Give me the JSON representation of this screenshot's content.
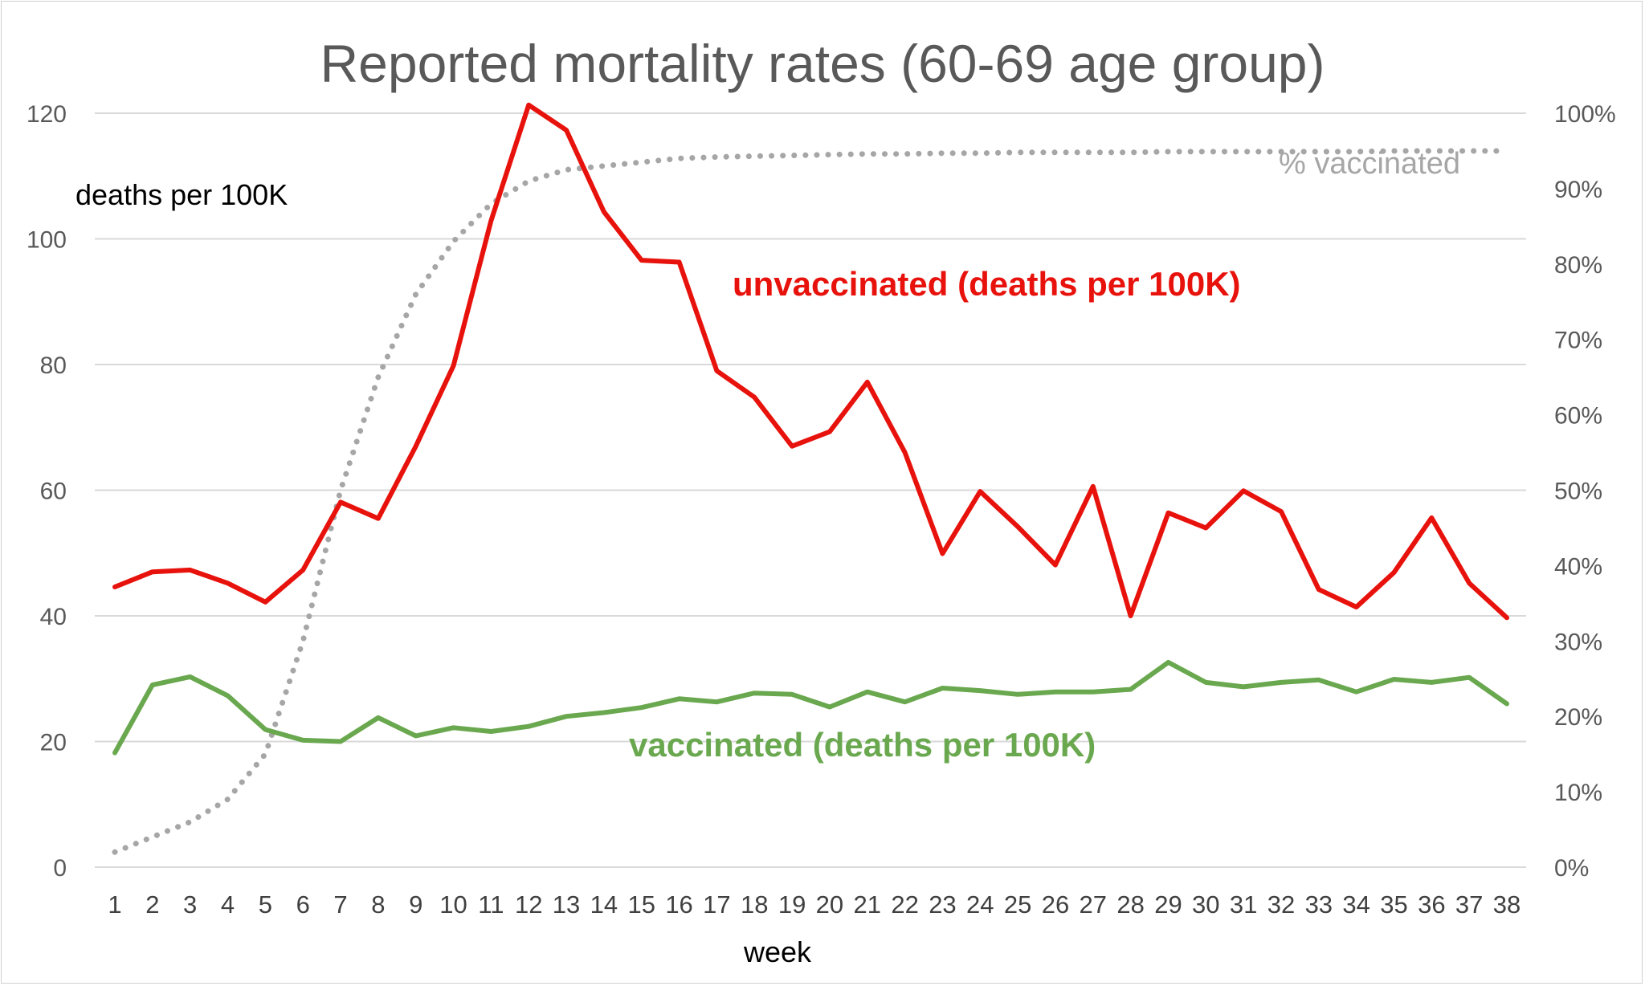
{
  "chart_data": {
    "type": "line",
    "title": "Reported mortality rates (60-69 age group)",
    "xlabel": "week",
    "ylabel": "deaths per 100K",
    "ylim": [
      0,
      120
    ],
    "y_ticks": [
      0,
      20,
      40,
      60,
      80,
      100,
      120
    ],
    "y2lim": [
      0,
      1
    ],
    "y2_ticks": [
      "0%",
      "10%",
      "20%",
      "30%",
      "40%",
      "50%",
      "60%",
      "70%",
      "80%",
      "90%",
      "100%"
    ],
    "grid": true,
    "categories": [
      "1",
      "2",
      "3",
      "4",
      "5",
      "6",
      "7",
      "8",
      "9",
      "10",
      "11",
      "12",
      "13",
      "14",
      "15",
      "16",
      "17",
      "18",
      "19",
      "20",
      "21",
      "22",
      "23",
      "24",
      "25",
      "26",
      "27",
      "28",
      "29",
      "30",
      "31",
      "32",
      "33",
      "34",
      "35",
      "36",
      "37",
      "38"
    ],
    "series": [
      {
        "name": "unvaccinated (deaths per 100K)",
        "axis": "left",
        "color": "#e8120c",
        "values": [
          44.6,
          47.0,
          47.3,
          45.2,
          42.2,
          47.3,
          58.1,
          55.5,
          67.0,
          79.8,
          102.9,
          121.3,
          117.3,
          104.3,
          96.6,
          96.3,
          79.0,
          74.8,
          67.0,
          69.3,
          77.2,
          66.0,
          49.9,
          59.8,
          54.2,
          48.1,
          60.6,
          40.0,
          56.4,
          54.0,
          59.9,
          56.6,
          44.2,
          41.4,
          46.9,
          55.6,
          45.2,
          39.7
        ]
      },
      {
        "name": "vaccinated (deaths per 100K)",
        "axis": "left",
        "color": "#6aa84f",
        "values": [
          18.2,
          29.0,
          30.3,
          27.3,
          21.9,
          20.2,
          20.0,
          23.8,
          20.9,
          22.2,
          21.6,
          22.4,
          24.0,
          24.6,
          25.4,
          26.8,
          26.3,
          27.7,
          27.5,
          25.5,
          27.9,
          26.3,
          28.5,
          28.1,
          27.5,
          27.9,
          27.9,
          28.3,
          32.6,
          29.4,
          28.7,
          29.4,
          29.8,
          27.9,
          29.9,
          29.4,
          30.2,
          26.0
        ]
      },
      {
        "name": "% vaccinated",
        "axis": "right",
        "color": "#a6a6a6",
        "values": [
          0.02,
          0.04,
          0.06,
          0.09,
          0.15,
          0.3,
          0.5,
          0.65,
          0.76,
          0.83,
          0.88,
          0.91,
          0.925,
          0.93,
          0.935,
          0.94,
          0.942,
          0.943,
          0.944,
          0.945,
          0.946,
          0.946,
          0.947,
          0.947,
          0.948,
          0.948,
          0.948,
          0.948,
          0.949,
          0.949,
          0.949,
          0.949,
          0.949,
          0.949,
          0.95,
          0.95,
          0.95,
          0.95
        ]
      }
    ],
    "annotations": {
      "left_axis_label": "deaths per 100K",
      "unvaccinated_label": "unvaccinated (deaths per 100K)",
      "vaccinated_label": "vaccinated (deaths per 100K)",
      "pct_label": "% vaccinated"
    }
  }
}
